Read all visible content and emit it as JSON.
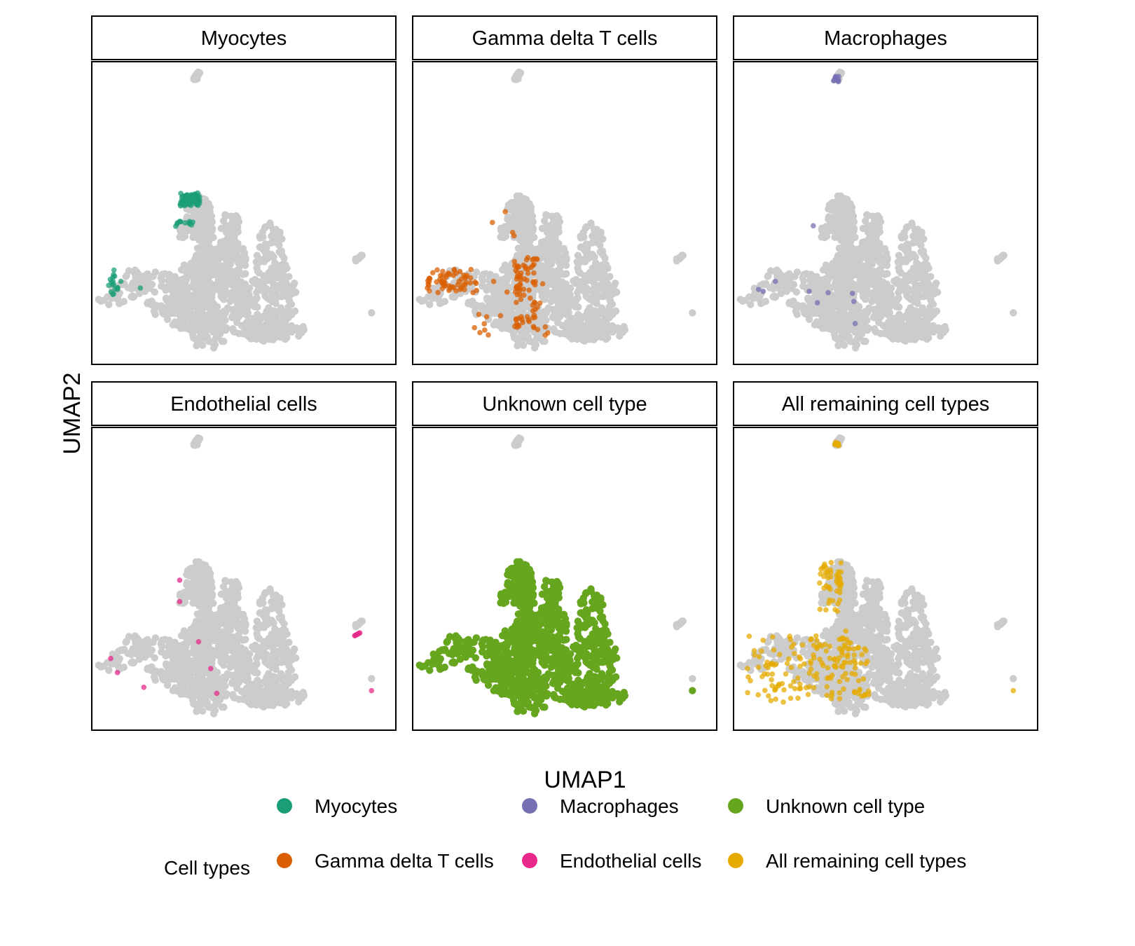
{
  "chart_data": {
    "type": "scatter",
    "xlabel": "UMAP1",
    "ylabel": "UMAP2",
    "background_color": "#cccccc",
    "panels": [
      {
        "title": "Myocytes",
        "color": "#1b9e77",
        "highlight": "myocytes"
      },
      {
        "title": "Gamma delta T cells",
        "color": "#d95f02",
        "highlight": "gamma"
      },
      {
        "title": "Macrophages",
        "color": "#7570b3",
        "highlight": "macrophages"
      },
      {
        "title": "Endothelial cells",
        "color": "#e7298a",
        "highlight": "endothelial"
      },
      {
        "title": "Unknown cell type",
        "color": "#66a61e",
        "highlight": "unknown"
      },
      {
        "title": "All remaining cell types",
        "color": "#e6ab02",
        "highlight": "remaining"
      }
    ],
    "legend": {
      "title": "Cell types",
      "placement": "bottom",
      "entries": [
        {
          "label": "Myocytes",
          "color": "#1b9e77"
        },
        {
          "label": "Gamma delta T cells",
          "color": "#d95f02"
        },
        {
          "label": "Macrophages",
          "color": "#7570b3"
        },
        {
          "label": "Endothelial cells",
          "color": "#e7298a"
        },
        {
          "label": "Unknown cell type",
          "color": "#66a61e"
        },
        {
          "label": "All remaining cell types",
          "color": "#e6ab02"
        }
      ]
    },
    "grid": false,
    "axis_ticks": false
  }
}
